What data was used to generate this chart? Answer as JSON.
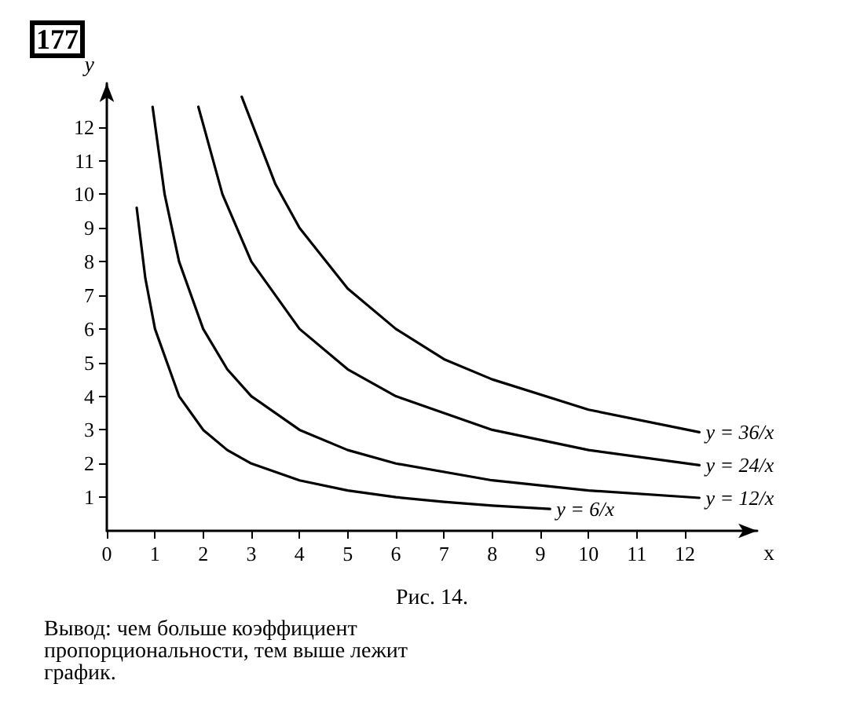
{
  "chart_data": {
    "type": "line",
    "title": "177",
    "xlabel": "x",
    "ylabel": "y",
    "xlim": [
      0,
      13.5
    ],
    "ylim": [
      0,
      13.3
    ],
    "xticks": [
      0,
      1,
      2,
      3,
      4,
      5,
      6,
      7,
      8,
      9,
      10,
      11,
      12
    ],
    "yticks": [
      1,
      2,
      3,
      4,
      5,
      6,
      7,
      8,
      9,
      10,
      11,
      12
    ],
    "grid": false,
    "series": [
      {
        "name": "y = 6/x",
        "color": "#000000",
        "x": [
          0.62,
          0.8,
          1,
          1.5,
          2,
          2.5,
          3,
          4,
          5,
          6,
          7,
          8,
          9.2
        ],
        "values": [
          9.6,
          7.5,
          6,
          4,
          3,
          2.4,
          2,
          1.5,
          1.2,
          1,
          0.86,
          0.75,
          0.65
        ]
      },
      {
        "name": "y = 12/x",
        "color": "#000000",
        "x": [
          0.95,
          1.2,
          1.5,
          2,
          2.5,
          3,
          4,
          5,
          6,
          8,
          10,
          12.3
        ],
        "values": [
          12.6,
          10,
          8,
          6,
          4.8,
          4,
          3,
          2.4,
          2,
          1.5,
          1.2,
          0.98
        ]
      },
      {
        "name": "y = 24/x",
        "color": "#000000",
        "x": [
          1.9,
          2.4,
          3,
          4,
          5,
          6,
          8,
          10,
          12.3
        ],
        "values": [
          12.6,
          10,
          8,
          6,
          4.8,
          4,
          3,
          2.4,
          1.95
        ]
      },
      {
        "name": "y = 36/x",
        "color": "#000000",
        "x": [
          2.8,
          3.5,
          4,
          5,
          6,
          7,
          8,
          10,
          12.3
        ],
        "values": [
          12.9,
          10.3,
          9,
          7.2,
          6,
          5.1,
          4.5,
          3.6,
          2.93
        ]
      }
    ],
    "annotations": [
      "Рис. 14.",
      "Вывод: чем больше коэффициент пропорциональности, тем выше лежит график."
    ]
  }
}
